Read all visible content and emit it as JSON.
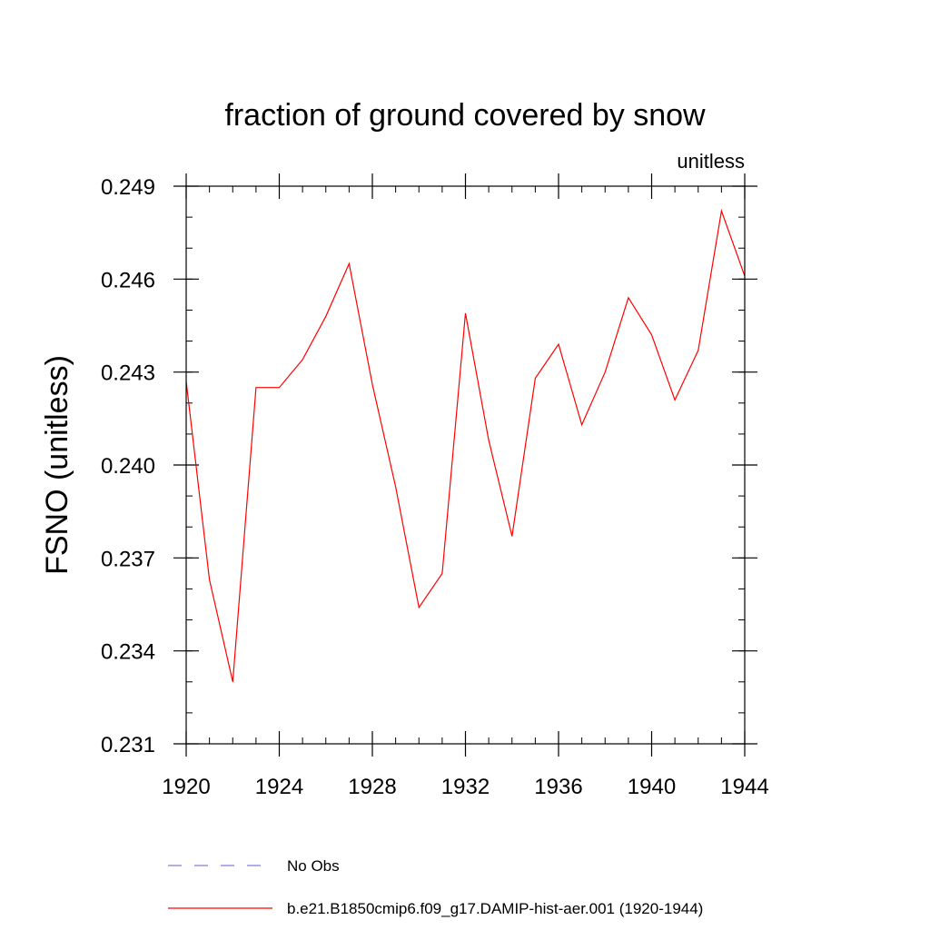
{
  "chart_data": {
    "type": "line",
    "title": "fraction of ground covered by snow",
    "units_label": "unitless",
    "ylabel": "FSNO  (unitless)",
    "xlabel": "",
    "xlim": [
      1920,
      1944
    ],
    "ylim": [
      0.231,
      0.249
    ],
    "x_ticks": [
      1920,
      1924,
      1928,
      1932,
      1936,
      1940,
      1944
    ],
    "y_ticks": [
      "0.231",
      "0.234",
      "0.237",
      "0.240",
      "0.243",
      "0.246",
      "0.249"
    ],
    "x_minor_step": 1,
    "y_minor_step": 0.001,
    "grid": false,
    "legend_placement": "bottom",
    "series": [
      {
        "name": "b.e21.B1850cmip6.f09_g17.DAMIP-hist-aer.001 (1920-1944)",
        "color": "#ff0000",
        "style": "solid",
        "x": [
          1920,
          1921,
          1922,
          1923,
          1924,
          1925,
          1926,
          1927,
          1928,
          1929,
          1930,
          1931,
          1932,
          1933,
          1934,
          1935,
          1936,
          1937,
          1938,
          1939,
          1940,
          1941,
          1942,
          1943,
          1944
        ],
        "y": [
          0.2427,
          0.2363,
          0.233,
          0.2425,
          0.2425,
          0.2434,
          0.2448,
          0.2465,
          0.2426,
          0.2393,
          0.2354,
          0.2365,
          0.2449,
          0.2408,
          0.2377,
          0.2428,
          0.2439,
          0.2413,
          0.243,
          0.2454,
          0.2442,
          0.2421,
          0.2437,
          0.2482,
          0.2461
        ]
      }
    ],
    "legend": [
      {
        "label": "No Obs",
        "color": "#7f7fd8",
        "style": "dashed"
      },
      {
        "label": "b.e21.B1850cmip6.f09_g17.DAMIP-hist-aer.001 (1920-1944)",
        "color": "#ff0000",
        "style": "solid"
      }
    ]
  }
}
